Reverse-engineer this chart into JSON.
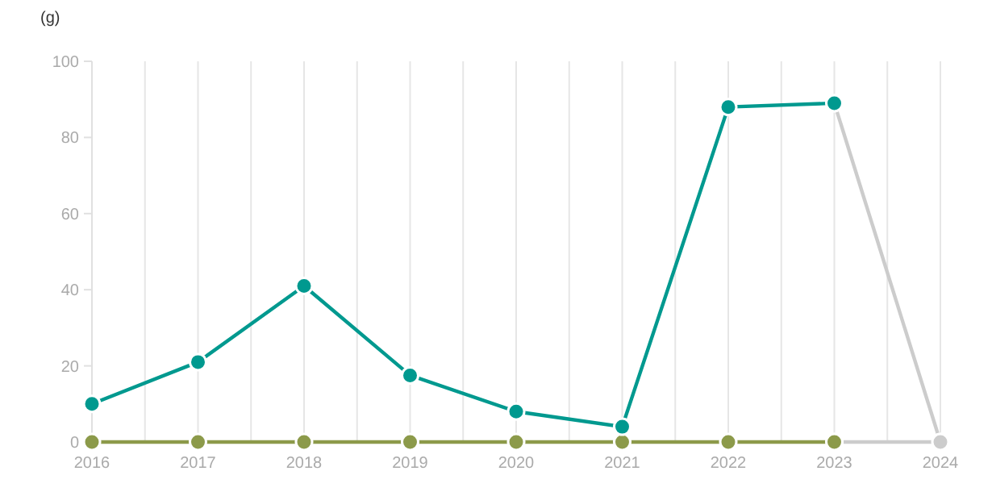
{
  "chart_data": {
    "type": "line",
    "ylabel": "(g)",
    "categories": [
      "2016",
      "2017",
      "2018",
      "2019",
      "2020",
      "2021",
      "2022",
      "2023",
      "2024"
    ],
    "series": [
      {
        "color": "#cccccc",
        "values": [
          null,
          null,
          null,
          null,
          null,
          null,
          null,
          89,
          0
        ]
      },
      {
        "color": "#cccccc",
        "values": [
          null,
          null,
          null,
          null,
          null,
          null,
          null,
          0,
          0
        ]
      },
      {
        "color": "#8c9a4a",
        "values": [
          0,
          0,
          0,
          0,
          0,
          0,
          0,
          0,
          null
        ]
      },
      {
        "color": "#00998f",
        "values": [
          10,
          21,
          41,
          17.5,
          8,
          4,
          88,
          89,
          null
        ]
      }
    ],
    "ylim": [
      0,
      100
    ],
    "yticks": [
      0,
      20,
      40,
      60,
      80,
      100
    ],
    "grid": "x",
    "marker": "circle",
    "line_style": "solid"
  }
}
